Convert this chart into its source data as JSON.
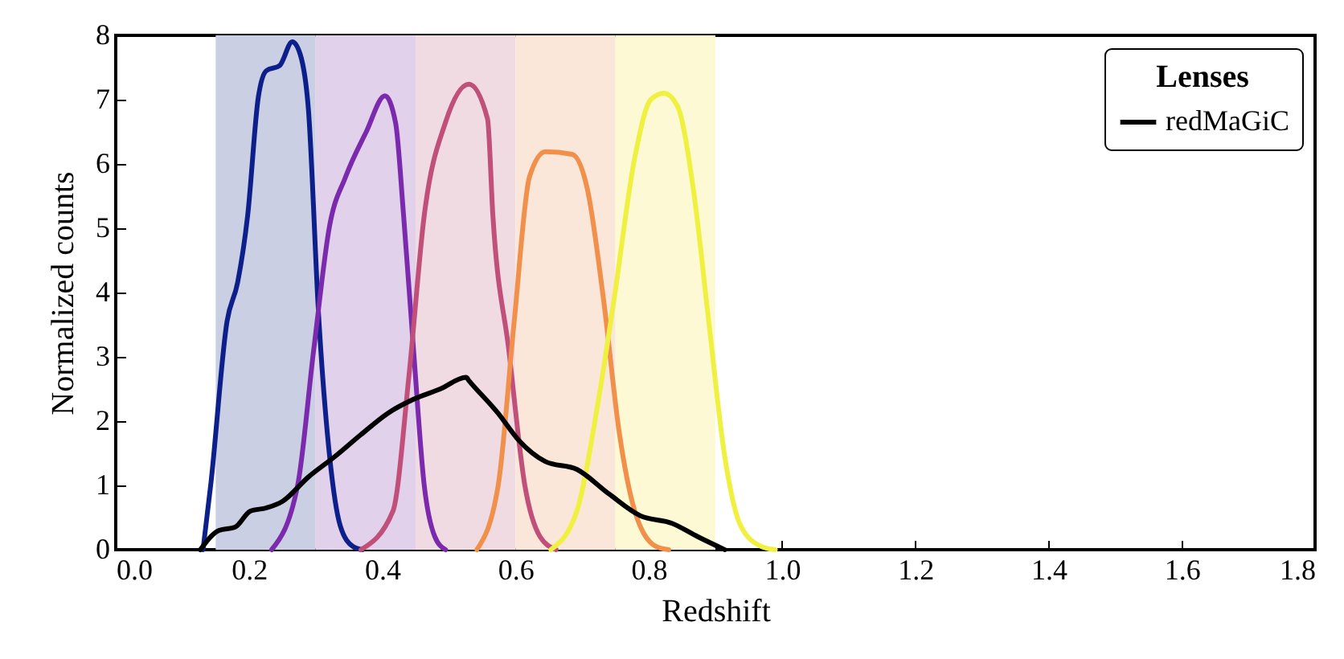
{
  "chart_data": {
    "type": "line",
    "xlabel": "Redshift",
    "ylabel": "Normalized counts",
    "legend_title": "Lenses",
    "legend": "top right",
    "grid": false,
    "line_style": "solid",
    "marker": "none",
    "xlim": [
      0,
      1.8
    ],
    "xticks": [
      {
        "value": 0,
        "label": "0.0"
      },
      0.2,
      0.4,
      0.6,
      0.8,
      {
        "value": 1,
        "label": "1.0"
      },
      1.2,
      1.4,
      1.6,
      1.8
    ],
    "ylim": [
      0,
      8
    ],
    "yticks": [
      0,
      1,
      2,
      3,
      4,
      5,
      6,
      7,
      8
    ],
    "bands": [
      {
        "axis": "x",
        "from": 0.15,
        "to": 0.3,
        "color": "#cbcfe3"
      },
      {
        "axis": "x",
        "from": 0.3,
        "to": 0.45,
        "color": "#e2d1ea"
      },
      {
        "axis": "x",
        "from": 0.45,
        "to": 0.6,
        "color": "#f1dbe3"
      },
      {
        "axis": "x",
        "from": 0.6,
        "to": 0.75,
        "color": "#fae7da"
      },
      {
        "axis": "x",
        "from": 0.75,
        "to": 0.9,
        "color": "#fdf9d5"
      }
    ],
    "series": [
      {
        "color": "#0d1f8a",
        "x": [
          0.131,
          0.143,
          0.167,
          0.183,
          0.198,
          0.214,
          0.226,
          0.246,
          0.265,
          0.277,
          0.289,
          0.305,
          0.321,
          0.337,
          0.356,
          0.37
        ],
        "values": [
          0,
          1.05,
          3.55,
          4.16,
          5.2,
          7.04,
          7.45,
          7.53,
          7.9,
          7.7,
          6.87,
          3.55,
          1.45,
          0.37,
          0.05,
          0
        ]
      },
      {
        "color": "#7b2aad",
        "x": [
          0.234,
          0.273,
          0.297,
          0.321,
          0.345,
          0.376,
          0.404,
          0.42,
          0.432,
          0.447,
          0.463,
          0.479,
          0.495
        ],
        "values": [
          0,
          1.0,
          3.1,
          5.04,
          5.8,
          6.5,
          7.06,
          6.64,
          5.2,
          3.1,
          1.0,
          0.2,
          0
        ]
      },
      {
        "color": "#c0507a",
        "x": [
          0.368,
          0.416,
          0.44,
          0.463,
          0.495,
          0.53,
          0.558,
          0.566,
          0.59,
          0.614,
          0.637,
          0.661
        ],
        "values": [
          0,
          0.6,
          2.7,
          5.2,
          6.65,
          7.24,
          6.7,
          5.2,
          3.1,
          1.0,
          0.2,
          0
        ]
      },
      {
        "color": "#f0904a",
        "x": [
          0.542,
          0.574,
          0.598,
          0.621,
          0.645,
          0.685,
          0.708,
          0.732,
          0.756,
          0.779,
          0.811,
          0.83
        ],
        "values": [
          0,
          1.0,
          3.55,
          5.8,
          6.19,
          6.15,
          5.6,
          3.9,
          1.8,
          0.6,
          0.05,
          0
        ]
      },
      {
        "color": "#f0f040",
        "x": [
          0.653,
          0.692,
          0.724,
          0.748,
          0.779,
          0.803,
          0.823,
          0.843,
          0.867,
          0.89,
          0.914,
          0.938,
          0.969,
          0.99
        ],
        "values": [
          0,
          0.6,
          2.3,
          3.9,
          6.1,
          7.0,
          7.1,
          6.9,
          5.6,
          3.55,
          1.45,
          0.37,
          0.05,
          0
        ]
      },
      {
        "name": "redMaGiC",
        "color": "#000000",
        "x": [
          0.127,
          0.155,
          0.179,
          0.202,
          0.226,
          0.25,
          0.289,
          0.329,
          0.368,
          0.408,
          0.447,
          0.487,
          0.526,
          0.53,
          0.574,
          0.605,
          0.645,
          0.692,
          0.74,
          0.787,
          0.835,
          0.874,
          0.914
        ],
        "values": [
          0,
          0.3,
          0.35,
          0.6,
          0.65,
          0.75,
          1.13,
          1.45,
          1.79,
          2.12,
          2.34,
          2.5,
          2.68,
          2.63,
          2.12,
          1.7,
          1.37,
          1.25,
          0.87,
          0.53,
          0.41,
          0.2,
          0
        ]
      }
    ]
  }
}
